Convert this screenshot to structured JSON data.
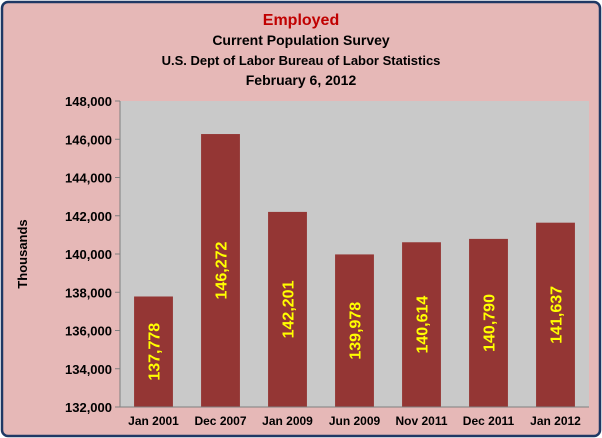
{
  "chart_data": {
    "type": "bar",
    "title": "Employed",
    "subtitle_lines": [
      "Current Population Survey",
      "U.S. Dept of Labor Bureau of Labor Statistics",
      "February 6, 2012"
    ],
    "xlabel": "",
    "ylabel": "Thousands",
    "ylim": [
      132000,
      148000
    ],
    "y_ticks": [
      132000,
      134000,
      136000,
      138000,
      140000,
      142000,
      144000,
      146000,
      148000
    ],
    "y_tick_labels": [
      "132,000",
      "134,000",
      "136,000",
      "138,000",
      "140,000",
      "142,000",
      "144,000",
      "146,000",
      "148,000"
    ],
    "grid": false,
    "categories": [
      "Jan 2001",
      "Dec 2007",
      "Jan 2009",
      "Jun 2009",
      "Nov 2011",
      "Dec 2011",
      "Jan 2012"
    ],
    "values": [
      137778,
      146272,
      142201,
      139978,
      140614,
      140790,
      141637
    ],
    "data_labels": [
      "137,778",
      "146,272",
      "142,201",
      "139,978",
      "140,614",
      "140,790",
      "141,637"
    ],
    "colors": {
      "bar": "#943634",
      "plot_background": "#c9c9c9",
      "chart_background": "#e6b8b7",
      "title": "#c00000",
      "data_label": "#ffff00",
      "frame": "#1f3864"
    }
  }
}
